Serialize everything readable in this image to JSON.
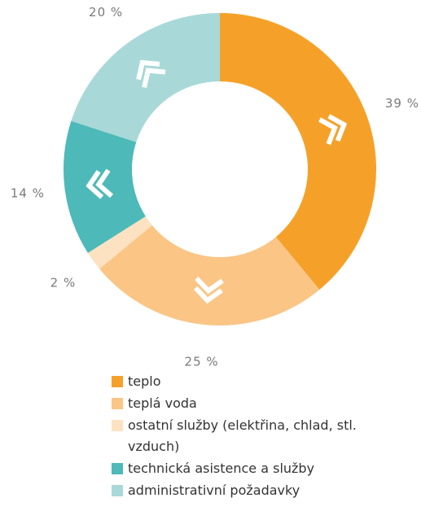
{
  "chart_data": {
    "type": "donut",
    "categories": [
      "teplo",
      "teplá voda",
      "ostatní služby (elektřina, chlad, stl. vzduch)",
      "technická asistence a služby",
      "administrativní požadavky"
    ],
    "values": [
      39,
      25,
      2,
      14,
      20
    ],
    "value_labels": [
      "39 %",
      "25 %",
      "2 %",
      "14 %",
      "20 %"
    ],
    "colors": [
      "#f5a129",
      "#fbc586",
      "#fde2c2",
      "#4db9b8",
      "#a9d8d8"
    ],
    "legend": "bottom"
  }
}
